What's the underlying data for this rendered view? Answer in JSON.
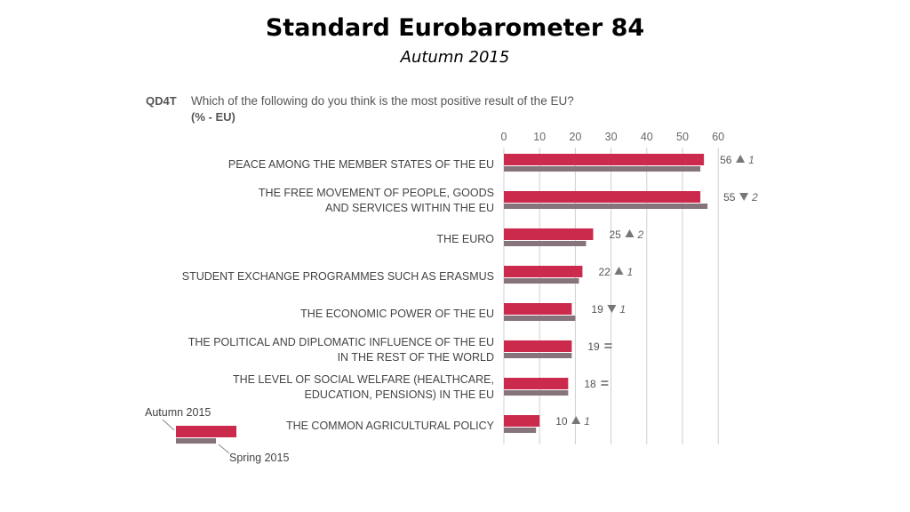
{
  "header": {
    "title": "Standard Eurobarometer 84",
    "subtitle": "Autumn 2015"
  },
  "question": {
    "code": "QD4T",
    "text": "Which of the following do you think is the most positive result of the EU?",
    "unit": "(% - EU)"
  },
  "colors": {
    "current": "#cc2a4d",
    "previous": "#86737b",
    "grid": "#d0d0d0"
  },
  "chart_data": {
    "type": "bar",
    "orientation": "horizontal",
    "xlim": [
      0,
      60
    ],
    "ticks": [
      "0",
      "10",
      "20",
      "30",
      "40",
      "50",
      "60"
    ],
    "grid": true,
    "legend_position": "bottom-left",
    "categories": [
      [
        "PEACE AMONG THE MEMBER STATES OF THE EU"
      ],
      [
        "THE FREE MOVEMENT OF PEOPLE, GOODS",
        "AND SERVICES WITHIN THE EU"
      ],
      [
        "THE EURO"
      ],
      [
        "STUDENT EXCHANGE PROGRAMMES SUCH AS ERASMUS"
      ],
      [
        "THE ECONOMIC POWER OF THE EU"
      ],
      [
        "THE POLITICAL AND DIPLOMATIC INFLUENCE OF THE EU",
        "IN THE REST OF THE WORLD"
      ],
      [
        "THE LEVEL OF SOCIAL WELFARE (HEALTHCARE,",
        "EDUCATION, PENSIONS) IN THE EU"
      ],
      [
        "THE COMMON AGRICULTURAL POLICY"
      ]
    ],
    "series": [
      {
        "name": "Autumn 2015",
        "values": [
          56,
          55,
          25,
          22,
          19,
          19,
          18,
          10
        ]
      },
      {
        "name": "Spring 2015",
        "values": [
          55,
          57,
          23,
          21,
          20,
          19,
          18,
          9
        ]
      }
    ],
    "value_labels": [
      "56",
      "55",
      "25",
      "22",
      "19",
      "19",
      "18",
      "10"
    ],
    "change_direction": [
      "up",
      "down",
      "up",
      "up",
      "down",
      "equal",
      "equal",
      "up"
    ],
    "change_values": [
      "1",
      "2",
      "2",
      "1",
      "1",
      "",
      "",
      "1"
    ]
  }
}
